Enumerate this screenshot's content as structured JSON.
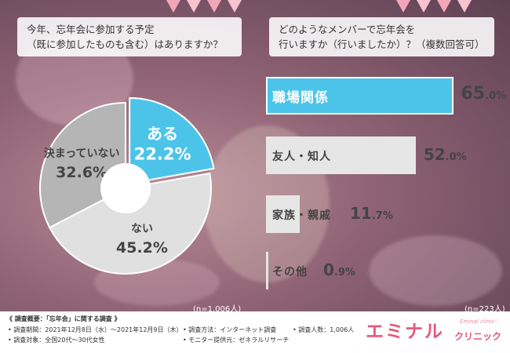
{
  "pie": {
    "question_line1": "今年、忘年会に参加する予定",
    "question_line2": "（既に参加したものも含む）はありますか？",
    "n_note": "(n=1,006人)"
  },
  "bars": {
    "question_line1": "どのようなメンバーで忘年会を",
    "question_line2": "行いますか（行いましたか）？（複数回答可）",
    "n_note": "(n=223人)"
  },
  "chart_data": [
    {
      "type": "pie",
      "categories": [
        "ある",
        "ない",
        "決まっていない"
      ],
      "values": [
        22.2,
        45.2,
        32.6
      ],
      "value_labels": [
        "22.2%",
        "45.2%",
        "32.6%"
      ],
      "colors": [
        "#4cc4e9",
        "#e0e0e0",
        "#b5b5b5"
      ],
      "highlight": "ある"
    },
    {
      "type": "bar",
      "orientation": "horizontal",
      "categories": [
        "職場関係",
        "友人・知人",
        "家族・親戚",
        "その他"
      ],
      "values": [
        65.0,
        52.0,
        11.7,
        0.9
      ],
      "value_labels": [
        "65.0%",
        "52.0%",
        "11.7%",
        "0.9%"
      ],
      "colors": [
        "#4cc4e9",
        "#e6e6e6",
        "#e6e6e6",
        "#e6e6e6"
      ],
      "xlim": [
        0,
        100
      ]
    }
  ],
  "footer": {
    "survey_title": "《 調査概要：「忘年会」に関する調査 》",
    "period": "• 調査期間：2021年12月8日（水）～2021年12月9日（木）",
    "target": "• 調査対象：全国20代～30代女性",
    "method": "• 調査方法：インターネット調査",
    "provider": "• モニター提供元：ゼネラルリサーチ",
    "count": "• 調査人数：1,006人",
    "logo_main": "エミナル",
    "logo_sub": "クリニック",
    "logo_roman": "Eminal clinic♡"
  }
}
